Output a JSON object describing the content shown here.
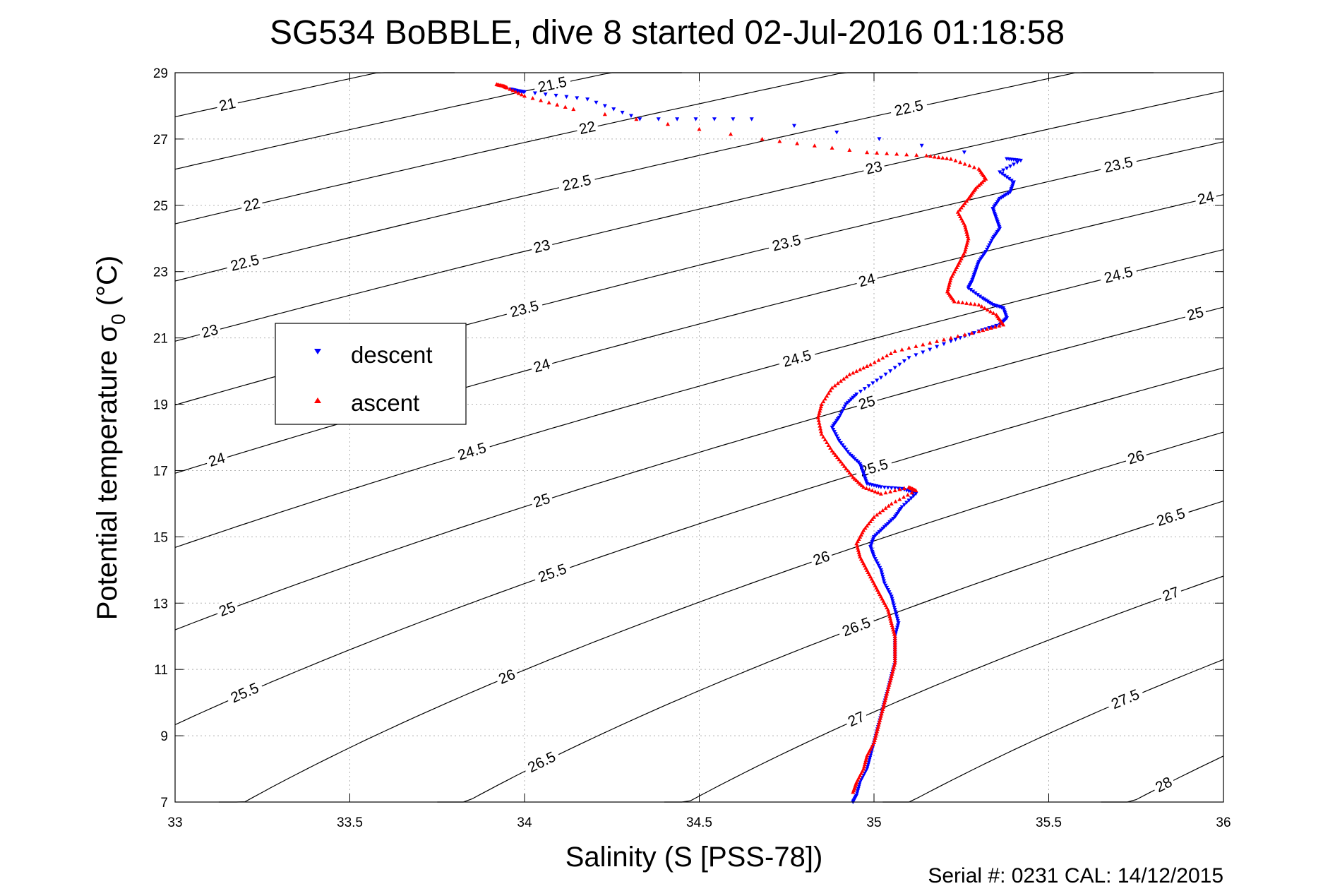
{
  "title": "SG534 BoBBLE, dive 8 started 02-Jul-2016 01:18:58",
  "footer": "Serial #: 0231  CAL: 14/12/2015",
  "colors": {
    "descent": "#0000ff",
    "ascent": "#ff0000",
    "isopycnal": "#000000",
    "grid": "#b0b0b0"
  },
  "chart_data": {
    "type": "scatter",
    "title": "SG534 BoBBLE, dive 8 started 02-Jul-2016 01:18:58",
    "xlabel": "Salinity (S [PSS-78])",
    "ylabel_main": "Potential temperature σ",
    "ylabel_sub": "0",
    "ylabel_unit": " (°C)",
    "xlim": [
      33,
      36
    ],
    "ylim": [
      7,
      29
    ],
    "grid": true,
    "legend_placement": "middle-left",
    "x_ticks": [
      "33",
      "33.5",
      "34",
      "34.5",
      "35",
      "35.5",
      "36"
    ],
    "x_tick_values": [
      33,
      33.5,
      34,
      34.5,
      35,
      35.5,
      36
    ],
    "y_ticks": [
      "7",
      "9",
      "11",
      "13",
      "15",
      "17",
      "19",
      "21",
      "23",
      "25",
      "27",
      "29"
    ],
    "y_tick_values": [
      7,
      9,
      11,
      13,
      15,
      17,
      19,
      21,
      23,
      25,
      27,
      29
    ],
    "isopycnal_levels": [
      21,
      21.5,
      22,
      22.5,
      23,
      23.5,
      24,
      24.5,
      25,
      25.5,
      26,
      26.5,
      27,
      27.5,
      28
    ],
    "isopycnal_labels": [
      {
        "text": "21",
        "sigma": 21,
        "S": 33.15
      },
      {
        "text": "21.5",
        "sigma": 21.5,
        "S": 34.08
      },
      {
        "text": "22",
        "sigma": 22,
        "S": 33.22
      },
      {
        "text": "22",
        "sigma": 22,
        "S": 34.18
      },
      {
        "text": "22.5",
        "sigma": 22.5,
        "S": 33.2
      },
      {
        "text": "22.5",
        "sigma": 22.5,
        "S": 34.15
      },
      {
        "text": "22.5",
        "sigma": 22.5,
        "S": 35.1
      },
      {
        "text": "23",
        "sigma": 23,
        "S": 33.1
      },
      {
        "text": "23",
        "sigma": 23,
        "S": 34.05
      },
      {
        "text": "23",
        "sigma": 23,
        "S": 35.0
      },
      {
        "text": "23.5",
        "sigma": 23.5,
        "S": 34.0
      },
      {
        "text": "23.5",
        "sigma": 23.5,
        "S": 34.75
      },
      {
        "text": "23.5",
        "sigma": 23.5,
        "S": 35.7
      },
      {
        "text": "24",
        "sigma": 24,
        "S": 33.12
      },
      {
        "text": "24",
        "sigma": 24,
        "S": 34.05
      },
      {
        "text": "24",
        "sigma": 24,
        "S": 34.98
      },
      {
        "text": "24",
        "sigma": 24,
        "S": 35.95
      },
      {
        "text": "24.5",
        "sigma": 24.5,
        "S": 33.85
      },
      {
        "text": "24.5",
        "sigma": 24.5,
        "S": 34.78
      },
      {
        "text": "24.5",
        "sigma": 24.5,
        "S": 35.7
      },
      {
        "text": "25",
        "sigma": 25,
        "S": 33.15
      },
      {
        "text": "25",
        "sigma": 25,
        "S": 34.05
      },
      {
        "text": "25",
        "sigma": 25,
        "S": 34.98
      },
      {
        "text": "25",
        "sigma": 25,
        "S": 35.92
      },
      {
        "text": "25.5",
        "sigma": 25.5,
        "S": 33.2
      },
      {
        "text": "25.5",
        "sigma": 25.5,
        "S": 34.08
      },
      {
        "text": "25.5",
        "sigma": 25.5,
        "S": 35.0
      },
      {
        "text": "26",
        "sigma": 26,
        "S": 33.95
      },
      {
        "text": "26",
        "sigma": 26,
        "S": 34.85
      },
      {
        "text": "26",
        "sigma": 26,
        "S": 35.75
      },
      {
        "text": "26.5",
        "sigma": 26.5,
        "S": 34.05
      },
      {
        "text": "26.5",
        "sigma": 26.5,
        "S": 34.95
      },
      {
        "text": "26.5",
        "sigma": 26.5,
        "S": 35.85
      },
      {
        "text": "27",
        "sigma": 27,
        "S": 34.95
      },
      {
        "text": "27",
        "sigma": 27,
        "S": 35.85
      },
      {
        "text": "27.5",
        "sigma": 27.5,
        "S": 35.72
      },
      {
        "text": "28",
        "sigma": 28,
        "S": 35.83
      }
    ],
    "series": [
      {
        "name": "descent",
        "marker": "triangle-down",
        "color": "#0000ff",
        "points": [
          [
            33.96,
            28.5
          ],
          [
            33.98,
            28.45
          ],
          [
            34.0,
            28.42
          ],
          [
            34.18,
            28.2
          ],
          [
            34.33,
            27.6
          ],
          [
            34.65,
            27.6
          ],
          [
            35.38,
            26.4
          ],
          [
            35.42,
            26.35
          ],
          [
            35.36,
            26.0
          ],
          [
            35.4,
            25.7
          ],
          [
            35.39,
            25.4
          ],
          [
            35.36,
            25.2
          ],
          [
            35.34,
            24.9
          ],
          [
            35.35,
            24.6
          ],
          [
            35.36,
            24.3
          ],
          [
            35.34,
            24.0
          ],
          [
            35.32,
            23.6
          ],
          [
            35.3,
            23.3
          ],
          [
            35.29,
            23.0
          ],
          [
            35.28,
            22.7
          ],
          [
            35.27,
            22.5
          ],
          [
            35.31,
            22.2
          ],
          [
            35.34,
            22.0
          ],
          [
            35.37,
            21.9
          ],
          [
            35.38,
            21.6
          ],
          [
            35.36,
            21.4
          ],
          [
            35.3,
            21.2
          ],
          [
            35.22,
            20.9
          ],
          [
            35.1,
            20.4
          ],
          [
            35.02,
            19.8
          ],
          [
            34.95,
            19.3
          ],
          [
            34.92,
            19.0
          ],
          [
            34.9,
            18.6
          ],
          [
            34.88,
            18.3
          ],
          [
            34.9,
            17.9
          ],
          [
            34.93,
            17.5
          ],
          [
            34.96,
            17.2
          ],
          [
            34.97,
            16.9
          ],
          [
            34.98,
            16.6
          ],
          [
            35.02,
            16.5
          ],
          [
            35.08,
            16.45
          ],
          [
            35.12,
            16.3
          ],
          [
            35.08,
            15.9
          ],
          [
            35.06,
            15.6
          ],
          [
            35.03,
            15.3
          ],
          [
            35.0,
            15.0
          ],
          [
            34.99,
            14.7
          ],
          [
            35.0,
            14.4
          ],
          [
            35.02,
            14.0
          ],
          [
            35.03,
            13.6
          ],
          [
            35.05,
            13.2
          ],
          [
            35.06,
            12.8
          ],
          [
            35.07,
            12.4
          ],
          [
            35.06,
            12.0
          ],
          [
            35.06,
            11.6
          ],
          [
            35.06,
            11.2
          ],
          [
            35.05,
            10.8
          ],
          [
            35.04,
            10.4
          ],
          [
            35.03,
            10.0
          ],
          [
            35.02,
            9.6
          ],
          [
            35.01,
            9.2
          ],
          [
            35.0,
            8.8
          ],
          [
            34.99,
            8.4
          ],
          [
            34.98,
            8.0
          ],
          [
            34.96,
            7.6
          ],
          [
            34.95,
            7.2
          ],
          [
            34.94,
            7.0
          ]
        ]
      },
      {
        "name": "ascent",
        "marker": "triangle-up",
        "color": "#ff0000",
        "points": [
          [
            33.92,
            28.65
          ],
          [
            33.94,
            28.6
          ],
          [
            33.95,
            28.55
          ],
          [
            34.0,
            28.3
          ],
          [
            34.14,
            27.9
          ],
          [
            34.68,
            27.0
          ],
          [
            34.98,
            26.6
          ],
          [
            35.15,
            26.5
          ],
          [
            35.22,
            26.4
          ],
          [
            35.3,
            26.1
          ],
          [
            35.32,
            25.8
          ],
          [
            35.29,
            25.5
          ],
          [
            35.27,
            25.2
          ],
          [
            35.24,
            24.8
          ],
          [
            35.26,
            24.4
          ],
          [
            35.27,
            24.0
          ],
          [
            35.26,
            23.6
          ],
          [
            35.24,
            23.2
          ],
          [
            35.22,
            22.8
          ],
          [
            35.21,
            22.4
          ],
          [
            35.23,
            22.1
          ],
          [
            35.3,
            22.0
          ],
          [
            35.35,
            21.7
          ],
          [
            35.37,
            21.4
          ],
          [
            35.3,
            21.2
          ],
          [
            35.18,
            20.9
          ],
          [
            35.06,
            20.6
          ],
          [
            34.99,
            20.2
          ],
          [
            34.93,
            19.9
          ],
          [
            34.88,
            19.5
          ],
          [
            34.85,
            19.0
          ],
          [
            34.84,
            18.6
          ],
          [
            34.85,
            18.1
          ],
          [
            34.88,
            17.6
          ],
          [
            34.91,
            17.2
          ],
          [
            34.94,
            16.8
          ],
          [
            34.97,
            16.5
          ],
          [
            35.02,
            16.3
          ],
          [
            35.1,
            16.5
          ],
          [
            35.12,
            16.4
          ],
          [
            35.05,
            16.0
          ],
          [
            35.0,
            15.6
          ],
          [
            34.97,
            15.2
          ],
          [
            34.95,
            14.8
          ],
          [
            34.96,
            14.4
          ],
          [
            34.98,
            14.0
          ],
          [
            35.0,
            13.6
          ],
          [
            35.02,
            13.2
          ],
          [
            35.04,
            12.8
          ],
          [
            35.05,
            12.4
          ],
          [
            35.06,
            12.0
          ],
          [
            35.06,
            11.6
          ],
          [
            35.06,
            11.2
          ],
          [
            35.05,
            10.8
          ],
          [
            35.04,
            10.4
          ],
          [
            35.03,
            10.0
          ],
          [
            35.02,
            9.6
          ],
          [
            35.01,
            9.2
          ],
          [
            35.0,
            8.8
          ],
          [
            34.98,
            8.4
          ],
          [
            34.97,
            8.0
          ],
          [
            34.95,
            7.6
          ],
          [
            34.94,
            7.3
          ]
        ]
      }
    ],
    "legend": [
      "descent",
      "ascent"
    ]
  }
}
